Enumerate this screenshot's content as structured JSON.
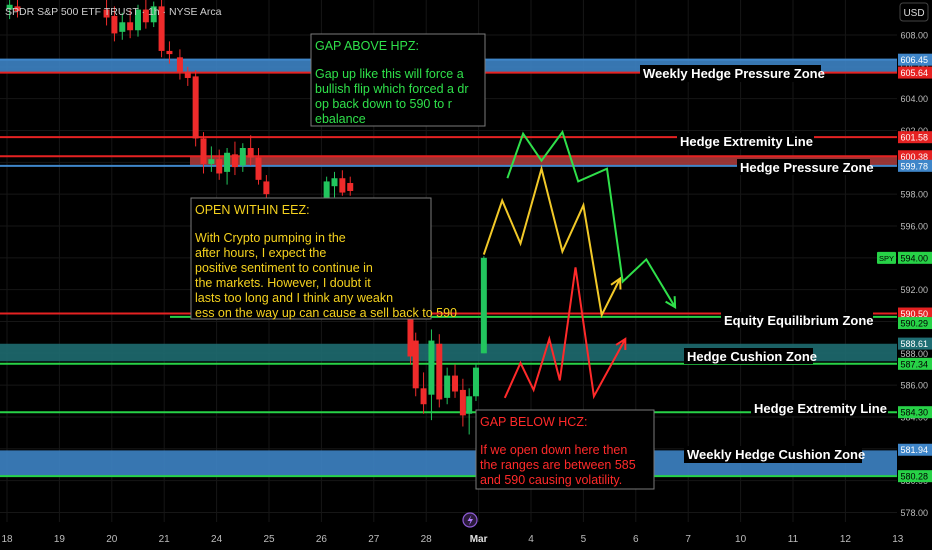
{
  "header": {
    "symbol_title": "SPDR S&P 500 ETF TRUST · 1h · NYSE Arca",
    "currency_button": "USD"
  },
  "colors": {
    "background": "#000000",
    "bull": "#22c55e",
    "bear": "#ef2b2b",
    "red_line": "#e52222",
    "green_line": "#27d247",
    "blue_zone": "#3f86c9",
    "teal_zone": "#1f6e73",
    "yellow_path": "#f2c928",
    "note_green": "#2fe04a",
    "note_yellow": "#f5d21e",
    "note_red": "#ff2a2a"
  },
  "chart_data": {
    "type": "candlestick",
    "timeframe": "1h",
    "ylim": [
      577.4,
      610.2
    ],
    "y_ticks": [
      578,
      580,
      582,
      584,
      586,
      588,
      590,
      592,
      594,
      596,
      598,
      600,
      602,
      604,
      606,
      608
    ],
    "y_tick_labels": [
      "578.00",
      "580.00",
      "582.00",
      "584.00",
      "586.00",
      "588.00",
      "590.00",
      "592.00",
      "594.00",
      "596.00",
      "598.00",
      "600.00",
      "602.00",
      "604.00",
      "606.00",
      "608.00"
    ],
    "x_ticks": [
      {
        "label": "18",
        "x": 0
      },
      {
        "label": "19",
        "x": 1
      },
      {
        "label": "20",
        "x": 2
      },
      {
        "label": "21",
        "x": 3
      },
      {
        "label": "24",
        "x": 4
      },
      {
        "label": "25",
        "x": 5
      },
      {
        "label": "26",
        "x": 6
      },
      {
        "label": "27",
        "x": 7
      },
      {
        "label": "28",
        "x": 8
      },
      {
        "label": "Mar",
        "x": 9
      },
      {
        "label": "4",
        "x": 10
      },
      {
        "label": "5",
        "x": 11
      },
      {
        "label": "6",
        "x": 12
      },
      {
        "label": "7",
        "x": 13
      },
      {
        "label": "10",
        "x": 14
      },
      {
        "label": "11",
        "x": 15
      },
      {
        "label": "12",
        "x": 16
      },
      {
        "label": "13",
        "x": 17
      }
    ],
    "candles": [
      {
        "x": 0.05,
        "o": 609.6,
        "h": 610.2,
        "l": 609.0,
        "c": 609.9
      },
      {
        "x": 0.2,
        "o": 609.8,
        "h": 610.3,
        "l": 609.1,
        "c": 609.5
      },
      {
        "x": 1.9,
        "o": 609.6,
        "h": 610.2,
        "l": 608.6,
        "c": 609.1
      },
      {
        "x": 2.05,
        "o": 609.2,
        "h": 609.8,
        "l": 607.6,
        "c": 608.1
      },
      {
        "x": 2.2,
        "o": 608.2,
        "h": 609.4,
        "l": 607.7,
        "c": 608.8
      },
      {
        "x": 2.35,
        "o": 608.8,
        "h": 609.6,
        "l": 607.8,
        "c": 608.3
      },
      {
        "x": 2.5,
        "o": 608.3,
        "h": 609.9,
        "l": 607.9,
        "c": 609.6
      },
      {
        "x": 2.65,
        "o": 609.6,
        "h": 610.2,
        "l": 608.4,
        "c": 608.8
      },
      {
        "x": 2.8,
        "o": 608.8,
        "h": 610.1,
        "l": 608.5,
        "c": 609.8
      },
      {
        "x": 2.95,
        "o": 609.8,
        "h": 610.2,
        "l": 606.6,
        "c": 607.0
      },
      {
        "x": 3.1,
        "o": 607.0,
        "h": 607.6,
        "l": 606.2,
        "c": 606.8
      },
      {
        "x": 3.3,
        "o": 606.6,
        "h": 607.1,
        "l": 605.2,
        "c": 605.7
      },
      {
        "x": 3.45,
        "o": 605.7,
        "h": 606.0,
        "l": 604.8,
        "c": 605.3
      },
      {
        "x": 3.6,
        "o": 605.4,
        "h": 605.8,
        "l": 601.0,
        "c": 601.5
      },
      {
        "x": 3.75,
        "o": 601.5,
        "h": 601.9,
        "l": 599.3,
        "c": 599.9
      },
      {
        "x": 3.9,
        "o": 599.9,
        "h": 601.0,
        "l": 599.4,
        "c": 600.2
      },
      {
        "x": 4.05,
        "o": 600.2,
        "h": 600.8,
        "l": 598.9,
        "c": 599.3
      },
      {
        "x": 4.2,
        "o": 599.4,
        "h": 600.9,
        "l": 598.6,
        "c": 600.6
      },
      {
        "x": 4.35,
        "o": 600.5,
        "h": 601.3,
        "l": 599.2,
        "c": 599.7
      },
      {
        "x": 4.5,
        "o": 599.8,
        "h": 601.2,
        "l": 599.4,
        "c": 600.9
      },
      {
        "x": 4.65,
        "o": 600.9,
        "h": 601.7,
        "l": 599.8,
        "c": 600.3
      },
      {
        "x": 4.8,
        "o": 600.3,
        "h": 600.9,
        "l": 598.6,
        "c": 598.9
      },
      {
        "x": 4.95,
        "o": 598.8,
        "h": 599.2,
        "l": 597.6,
        "c": 598.0
      },
      {
        "x": 6.1,
        "o": 597.6,
        "h": 599.1,
        "l": 597.0,
        "c": 598.8
      },
      {
        "x": 6.25,
        "o": 598.5,
        "h": 599.4,
        "l": 597.8,
        "c": 599.0
      },
      {
        "x": 6.4,
        "o": 599.0,
        "h": 599.5,
        "l": 597.9,
        "c": 598.1
      },
      {
        "x": 6.55,
        "o": 598.7,
        "h": 599.1,
        "l": 597.9,
        "c": 598.2
      },
      {
        "x": 7.7,
        "o": 590.3,
        "h": 591.0,
        "l": 587.3,
        "c": 587.8
      },
      {
        "x": 7.8,
        "o": 588.8,
        "h": 589.3,
        "l": 585.3,
        "c": 585.8
      },
      {
        "x": 7.95,
        "o": 585.8,
        "h": 586.8,
        "l": 584.2,
        "c": 584.8
      },
      {
        "x": 8.1,
        "o": 585.4,
        "h": 589.5,
        "l": 583.8,
        "c": 588.8
      },
      {
        "x": 8.25,
        "o": 588.6,
        "h": 589.2,
        "l": 584.6,
        "c": 585.1
      },
      {
        "x": 8.4,
        "o": 585.2,
        "h": 587.1,
        "l": 584.8,
        "c": 586.6
      },
      {
        "x": 8.55,
        "o": 586.6,
        "h": 587.3,
        "l": 585.2,
        "c": 585.6
      },
      {
        "x": 8.7,
        "o": 585.7,
        "h": 586.4,
        "l": 583.4,
        "c": 584.1
      },
      {
        "x": 8.82,
        "o": 584.2,
        "h": 585.8,
        "l": 582.9,
        "c": 585.3
      },
      {
        "x": 8.95,
        "o": 585.3,
        "h": 587.4,
        "l": 585.0,
        "c": 587.1
      },
      {
        "x": 9.1,
        "o": 588.0,
        "h": 594.1,
        "l": 588.0,
        "c": 594.0
      }
    ],
    "zones": [
      {
        "label": "Weekly Hedge Pressure Zone",
        "type": "band",
        "from": 605.6,
        "to": 606.5,
        "color": "#3f86c9"
      },
      {
        "label": "Weekly Hedge Cushion Zone",
        "type": "band",
        "from": 580.3,
        "to": 581.9,
        "color": "#3f86c9"
      },
      {
        "label": "Hedge Cushion Zone",
        "type": "band",
        "from": 587.5,
        "to": 588.6,
        "color": "#1f6e73"
      },
      {
        "label": "Hedge Pressure Zone",
        "type": "band",
        "from": 599.8,
        "to": 600.4,
        "color": "#a63a3a"
      }
    ],
    "levels": [
      {
        "label": "Hedge Extremity Line",
        "y": 601.58,
        "color": "#e52222"
      },
      {
        "label": "Equity Equilibrium Zone",
        "y": 590.5,
        "color": "#e52222"
      },
      {
        "label": "Hedge Extremity Line",
        "y": 584.3,
        "color": "#27d247"
      },
      {
        "y": 605.64,
        "color": "#e52222"
      },
      {
        "y": 606.45,
        "color": "#3f86c9"
      },
      {
        "y": 600.38,
        "color": "#e52222"
      },
      {
        "y": 599.78,
        "color": "#3f86c9"
      },
      {
        "y": 590.29,
        "color": "#27d247"
      },
      {
        "y": 587.34,
        "color": "#27d247"
      },
      {
        "y": 580.28,
        "color": "#27d247"
      }
    ],
    "price_badges": [
      {
        "text": "606.45",
        "y": 606.45,
        "bg": "#3f86c9",
        "fg": "#ffffff"
      },
      {
        "text": "605.64",
        "y": 605.64,
        "bg": "#e52222",
        "fg": "#ffffff"
      },
      {
        "text": "601.58",
        "y": 601.58,
        "bg": "#e52222",
        "fg": "#ffffff"
      },
      {
        "text": "600.38",
        "y": 600.38,
        "bg": "#e52222",
        "fg": "#ffffff"
      },
      {
        "text": "599.78",
        "y": 599.78,
        "bg": "#3f86c9",
        "fg": "#ffffff"
      },
      {
        "text": "594.00",
        "y": 594.0,
        "bg": "#27d247",
        "fg": "#000000",
        "tag": "SPY"
      },
      {
        "text": "590.50",
        "y": 590.5,
        "bg": "#e52222",
        "fg": "#ffffff"
      },
      {
        "text": "590.29",
        "y": 589.9,
        "bg": "#27d247",
        "fg": "#000000"
      },
      {
        "text": "588.61",
        "y": 588.61,
        "bg": "#1f6e73",
        "fg": "#ffffff"
      },
      {
        "text": "587.34",
        "y": 587.34,
        "bg": "#27d247",
        "fg": "#000000"
      },
      {
        "text": "584.30",
        "y": 584.3,
        "bg": "#27d247",
        "fg": "#000000"
      },
      {
        "text": "581.94",
        "y": 581.94,
        "bg": "#3f86c9",
        "fg": "#ffffff"
      },
      {
        "text": "580.28",
        "y": 580.28,
        "bg": "#27d247",
        "fg": "#000000"
      }
    ],
    "projections": [
      {
        "name": "bullish",
        "color": "#2fe04a",
        "points": [
          [
            9.55,
            599.0
          ],
          [
            9.85,
            601.8
          ],
          [
            10.2,
            600.1
          ],
          [
            10.6,
            601.9
          ],
          [
            10.9,
            598.8
          ],
          [
            11.45,
            599.6
          ],
          [
            11.75,
            592.5
          ],
          [
            12.2,
            593.9
          ],
          [
            12.75,
            590.9
          ]
        ]
      },
      {
        "name": "neutral",
        "color": "#f2c928",
        "points": [
          [
            9.1,
            594.2
          ],
          [
            9.45,
            597.6
          ],
          [
            9.8,
            594.9
          ],
          [
            10.2,
            599.6
          ],
          [
            10.6,
            594.4
          ],
          [
            11.0,
            597.3
          ],
          [
            11.35,
            590.4
          ],
          [
            11.7,
            592.7
          ]
        ]
      },
      {
        "name": "bearish",
        "color": "#ff2a2a",
        "points": [
          [
            9.5,
            585.2
          ],
          [
            9.8,
            587.4
          ],
          [
            10.05,
            585.7
          ],
          [
            10.35,
            588.9
          ],
          [
            10.55,
            586.3
          ],
          [
            10.85,
            593.4
          ],
          [
            11.2,
            585.3
          ],
          [
            11.8,
            588.9
          ]
        ]
      }
    ],
    "annotations": [
      {
        "title": "GAP ABOVE HPZ:",
        "text": "Gap up like this will force a bullish flip which forced a drop back down to 590 to rebalance",
        "color": "#2fe04a"
      },
      {
        "title": "OPEN WITHIN EEZ:",
        "text": "With Crypto pumping in the after hours, I expect the positive sentiment to continue in the markets. However, I doubt it lasts too long and I think any weakness on the way up can cause a sell back to 590",
        "color": "#f5d21e"
      },
      {
        "title": "GAP BELOW HCZ:",
        "text": "If we open down here then the ranges are between 585 and 590 causing volatility.",
        "color": "#ff2a2a"
      }
    ]
  }
}
